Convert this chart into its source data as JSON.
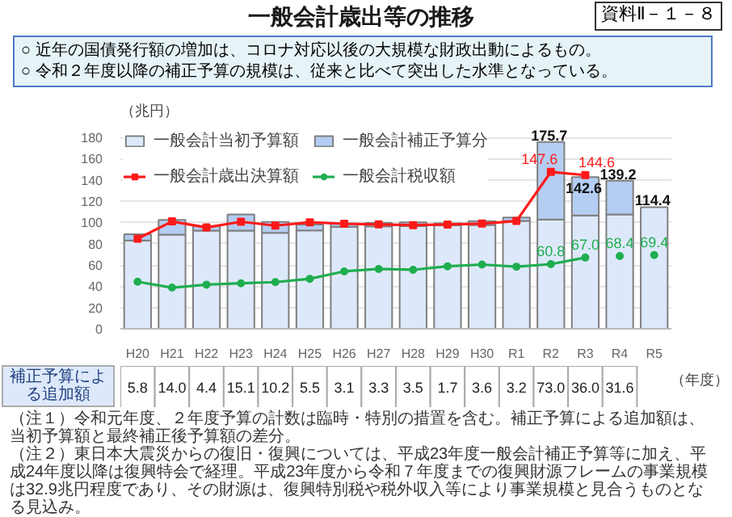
{
  "chart_data": {
    "type": "bar",
    "title": "一般会計歳出等の推移",
    "subtitle": "○ 近年の国債発行額の増加は、コロナ対応以後の大規模な財政出動によるもの。\n○ 令和２年度以降の補正予算の規模は、従来と比べて突出した水準となっている。",
    "ylabel": "（兆円）",
    "xlabel": "（年度）",
    "annotations": [
      "資料Ⅱ－１－８",
      "補正予算による追加額",
      "（注１）令和元年度、２年度予算の計数は臨時・特別の措置を含む。補正予算による追加額は、当初予算額と最終補正後予算額の差分。",
      "（注２）東日本大震災からの復旧・復興については、平成23年度一般会計補正予算等に加え、平成24年度以降は復興特会で経理。平成23年度から令和７年度までの復興財源フレームの事業規模は32.9兆円程度であり、その財源は、復興特別税や税外収入等により事業規模と見合うものとなる見込み。"
    ],
    "categories": [
      "H20",
      "H21",
      "H22",
      "H23",
      "H24",
      "H25",
      "H26",
      "H27",
      "H28",
      "H29",
      "H30",
      "R1",
      "R2",
      "R3",
      "R4",
      "R5"
    ],
    "stacked": true,
    "ylim": [
      0,
      190
    ],
    "yticks": [
      0,
      20,
      40,
      60,
      80,
      100,
      120,
      140,
      160,
      180
    ],
    "grid": "y",
    "legend": "top left",
    "totals": [
      null,
      null,
      null,
      null,
      null,
      null,
      null,
      null,
      null,
      null,
      null,
      null,
      "175.7",
      "142.6",
      "139.2",
      "114.4"
    ],
    "series": [
      {
        "name": "一般会計当初予算額",
        "color": "#dde9fb",
        "values": [
          83.1,
          88.5,
          92.3,
          92.4,
          90.3,
          92.6,
          95.9,
          96.3,
          96.7,
          97.5,
          97.7,
          101.5,
          102.7,
          106.6,
          107.6,
          114.4
        ]
      },
      {
        "name": "一般会計補正予算分",
        "color": "#b4cdf2",
        "values": [
          5.8,
          14.0,
          4.4,
          15.1,
          10.2,
          5.5,
          3.1,
          3.3,
          3.5,
          1.7,
          3.6,
          3.2,
          73.0,
          36.0,
          31.6,
          null
        ],
        "value_labels": [
          "5.8",
          "14.0",
          "4.4",
          "15.1",
          "10.2",
          "5.5",
          "3.1",
          "3.3",
          "3.5",
          "1.7",
          "3.6",
          "3.2",
          "73.0",
          "36.0",
          "31.6",
          null
        ]
      },
      {
        "name": "一般会計歳出決算額",
        "type": "line",
        "color": "#ff1a1a",
        "marker": "square",
        "values": [
          84.7,
          101.0,
          95.3,
          100.7,
          97.1,
          100.2,
          98.8,
          98.2,
          97.5,
          98.1,
          98.9,
          101.4,
          147.6,
          144.6,
          null,
          null
        ],
        "value_labels": [
          null,
          null,
          null,
          null,
          null,
          null,
          null,
          null,
          null,
          null,
          null,
          null,
          "147.6",
          "144.6",
          null,
          null
        ]
      },
      {
        "name": "一般会計税収額",
        "type": "line",
        "color": "#1fae4f",
        "marker": "circle",
        "values": [
          44.3,
          38.7,
          41.5,
          42.8,
          43.9,
          47.0,
          54.0,
          56.3,
          55.5,
          58.8,
          60.4,
          58.4,
          60.8,
          67.0,
          null,
          null
        ],
        "value_labels": [
          null,
          null,
          null,
          null,
          null,
          null,
          null,
          null,
          null,
          null,
          null,
          null,
          "60.8",
          "67.0",
          null,
          null
        ]
      },
      {
        "type": "scatter",
        "color": "#1fae4f",
        "marker": "circle",
        "x": [
          "R4",
          "R5"
        ],
        "values": [
          68.4,
          69.4
        ],
        "value_labels": [
          "68.4",
          "69.4"
        ]
      }
    ]
  }
}
